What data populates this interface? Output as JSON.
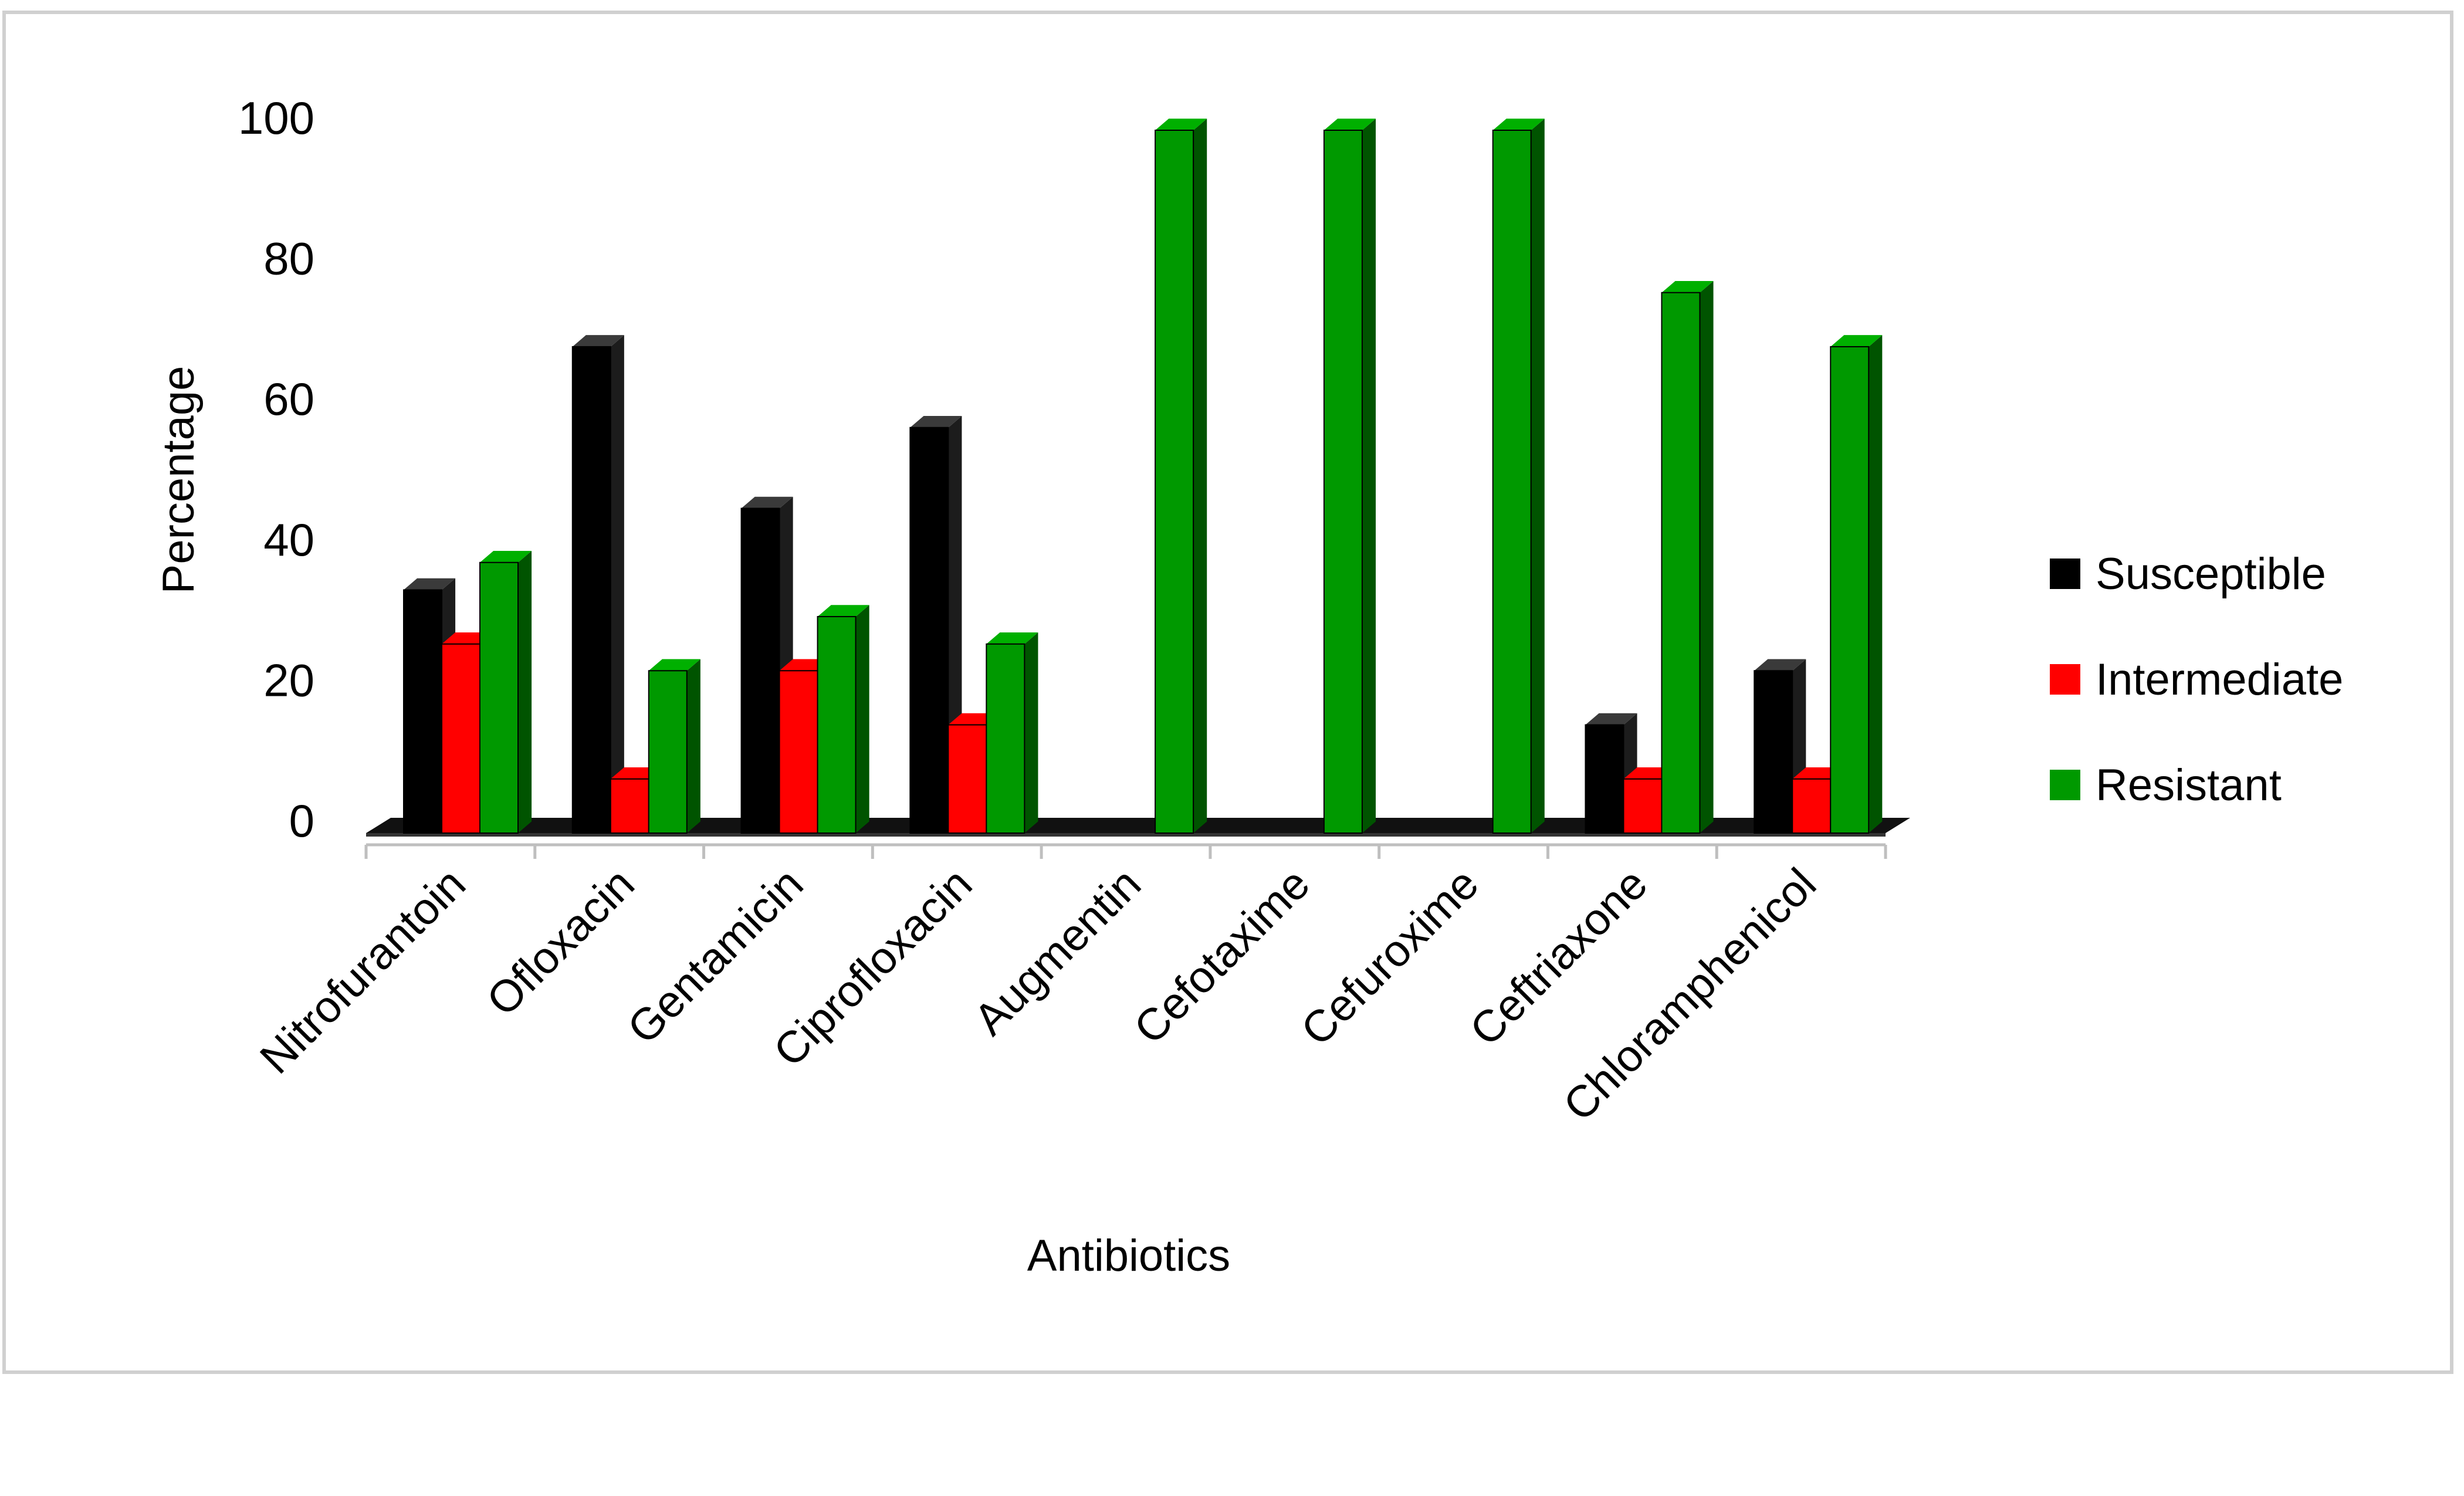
{
  "chart_data": {
    "type": "bar",
    "title": "",
    "xlabel": "Antibiotics",
    "ylabel": "Percentage",
    "ylim": [
      0,
      100
    ],
    "yticks": [
      0,
      20,
      40,
      60,
      80,
      100
    ],
    "grid": false,
    "legend_position": "right",
    "style": "3d-clustered-column",
    "categories": [
      "Nitrofurantoin",
      "Ofloxacin",
      "Gentamicin",
      "Ciprofloxacin",
      "Augmentin",
      "Cefotaxime",
      "Cefuroxime",
      "Ceftriaxone",
      "Chloramphenicol"
    ],
    "series": [
      {
        "name": "Susceptible",
        "color": "#000000",
        "values": [
          34.6,
          69.2,
          46.2,
          57.7,
          0,
          0,
          0,
          15.4,
          23.1
        ]
      },
      {
        "name": "Intermediate",
        "color": "#ff0000",
        "values": [
          26.9,
          7.7,
          23.1,
          15.4,
          0,
          0,
          0,
          7.7,
          7.7
        ]
      },
      {
        "name": "Resistant",
        "color": "#009900",
        "values": [
          38.5,
          23.1,
          30.8,
          26.9,
          100,
          100,
          100,
          76.9,
          69.2
        ]
      }
    ]
  }
}
